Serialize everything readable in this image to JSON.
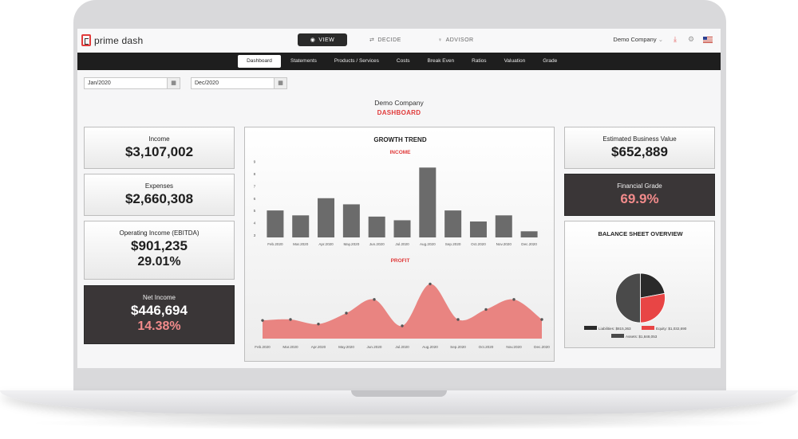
{
  "header": {
    "logo_text": "prime dash",
    "modes": [
      {
        "label": "VIEW",
        "icon": "eye-icon"
      },
      {
        "label": "DECIDE",
        "icon": "swap-icon"
      },
      {
        "label": "ADVISOR",
        "icon": "lightbulb-icon"
      }
    ],
    "company_select": "Demo Company",
    "icons": [
      "download-icon",
      "gear-icon",
      "us-flag-icon"
    ]
  },
  "nav": {
    "items": [
      "Dashboard",
      "Statements",
      "Products / Services",
      "Costs",
      "Break Even",
      "Ratios",
      "Valuation",
      "Grade"
    ],
    "active": "Dashboard"
  },
  "filters": {
    "start_date": "Jan/2020",
    "end_date": "Dec/2020"
  },
  "page": {
    "company": "Demo Company",
    "title": "DASHBOARD"
  },
  "cards": {
    "income": {
      "label": "Income",
      "value": "$3,107,002"
    },
    "expenses": {
      "label": "Expenses",
      "value": "$2,660,308"
    },
    "operating": {
      "label": "Operating Income (EBITDA)",
      "value": "$901,235",
      "pct": "29.01%"
    },
    "net": {
      "label": "Net Income",
      "value": "$446,694",
      "pct": "14.38%"
    },
    "business_value": {
      "label": "Estimated Business Value",
      "value": "$652,889"
    },
    "grade": {
      "label": "Financial Grade",
      "value": "69.9%"
    }
  },
  "growth": {
    "title": "GROWTH TREND",
    "income_label": "INCOME",
    "profit_label": "PROFIT"
  },
  "balance": {
    "title": "BALANCE SHEET OVERVIEW",
    "liabilities": "Liabilities: $815,363",
    "equity": "Equity: $1,032,690",
    "assets": "Assets: $1,848,053"
  },
  "chart_data": [
    {
      "type": "bar",
      "title": "INCOME",
      "categories": [
        "Feb.2020",
        "Mar.2020",
        "Apr.2020",
        "May.2020",
        "Jun.2020",
        "Jul.2020",
        "Aug.2020",
        "Sep.2020",
        "Oct.2020",
        "Nov.2020",
        "Dec.2020"
      ],
      "values": [
        5.0,
        4.6,
        6.0,
        5.5,
        4.5,
        4.2,
        8.5,
        5.0,
        4.1,
        4.6,
        3.3
      ],
      "yticks": [
        3,
        4,
        5,
        6,
        7,
        8,
        9
      ],
      "ylim": [
        2.8,
        9.3
      ],
      "color": "#6b6b6b"
    },
    {
      "type": "area",
      "title": "PROFIT",
      "categories": [
        "Feb.2020",
        "Mar.2020",
        "Apr.2020",
        "May.2020",
        "Jun.2020",
        "Jul.2020",
        "Aug.2020",
        "Sep.2020",
        "Oct.2020",
        "Nov.2020",
        "Dec.2020"
      ],
      "values": [
        2.0,
        2.1,
        1.6,
        2.8,
        4.3,
        1.4,
        6.0,
        2.1,
        3.2,
        4.3,
        2.1
      ],
      "ylim": [
        0,
        7
      ],
      "color": "#e98481"
    },
    {
      "type": "pie",
      "title": "BALANCE SHEET OVERVIEW",
      "labels": [
        "Liabilities",
        "Equity",
        "Assets"
      ],
      "values": [
        815363,
        1032690,
        1848053
      ],
      "colors": [
        "#2a2a2a",
        "#e84545",
        "#4a4a4a"
      ]
    }
  ]
}
